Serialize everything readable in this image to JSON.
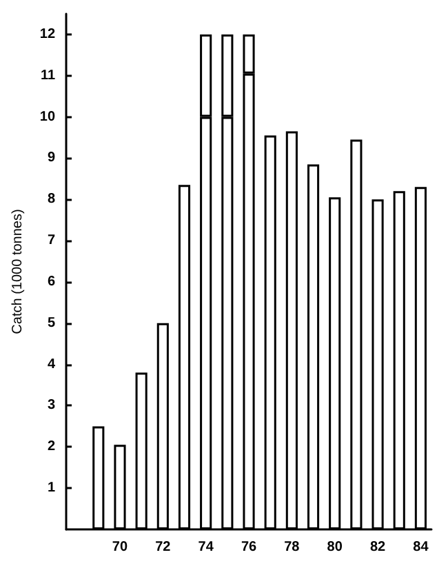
{
  "chart_data": {
    "type": "bar",
    "ylabel": "Catch (1000 tonnes)",
    "categories": [
      null,
      null,
      "70",
      null,
      "72",
      null,
      "74",
      null,
      "76",
      null,
      "78",
      null,
      "80",
      null,
      "82",
      null,
      "84"
    ],
    "stacked": true,
    "series": [
      {
        "color": "#ffffff",
        "values": [
          null,
          2.5,
          2.05,
          3.8,
          5.0,
          8.35,
          10.0,
          10.0,
          11.05,
          9.55,
          9.65,
          8.85,
          8.05,
          9.45,
          8.0,
          8.2,
          8.3
        ]
      },
      {
        "color": "#ffffff",
        "values": [
          null,
          null,
          null,
          null,
          null,
          null,
          2.0,
          2.0,
          0.95,
          null,
          null,
          null,
          null,
          null,
          null,
          null,
          null
        ]
      }
    ],
    "ylim": [
      0,
      12.5
    ],
    "yticks": [
      1,
      2,
      3,
      4,
      5,
      6,
      7,
      8,
      9,
      10,
      11,
      12
    ],
    "grid": false
  }
}
